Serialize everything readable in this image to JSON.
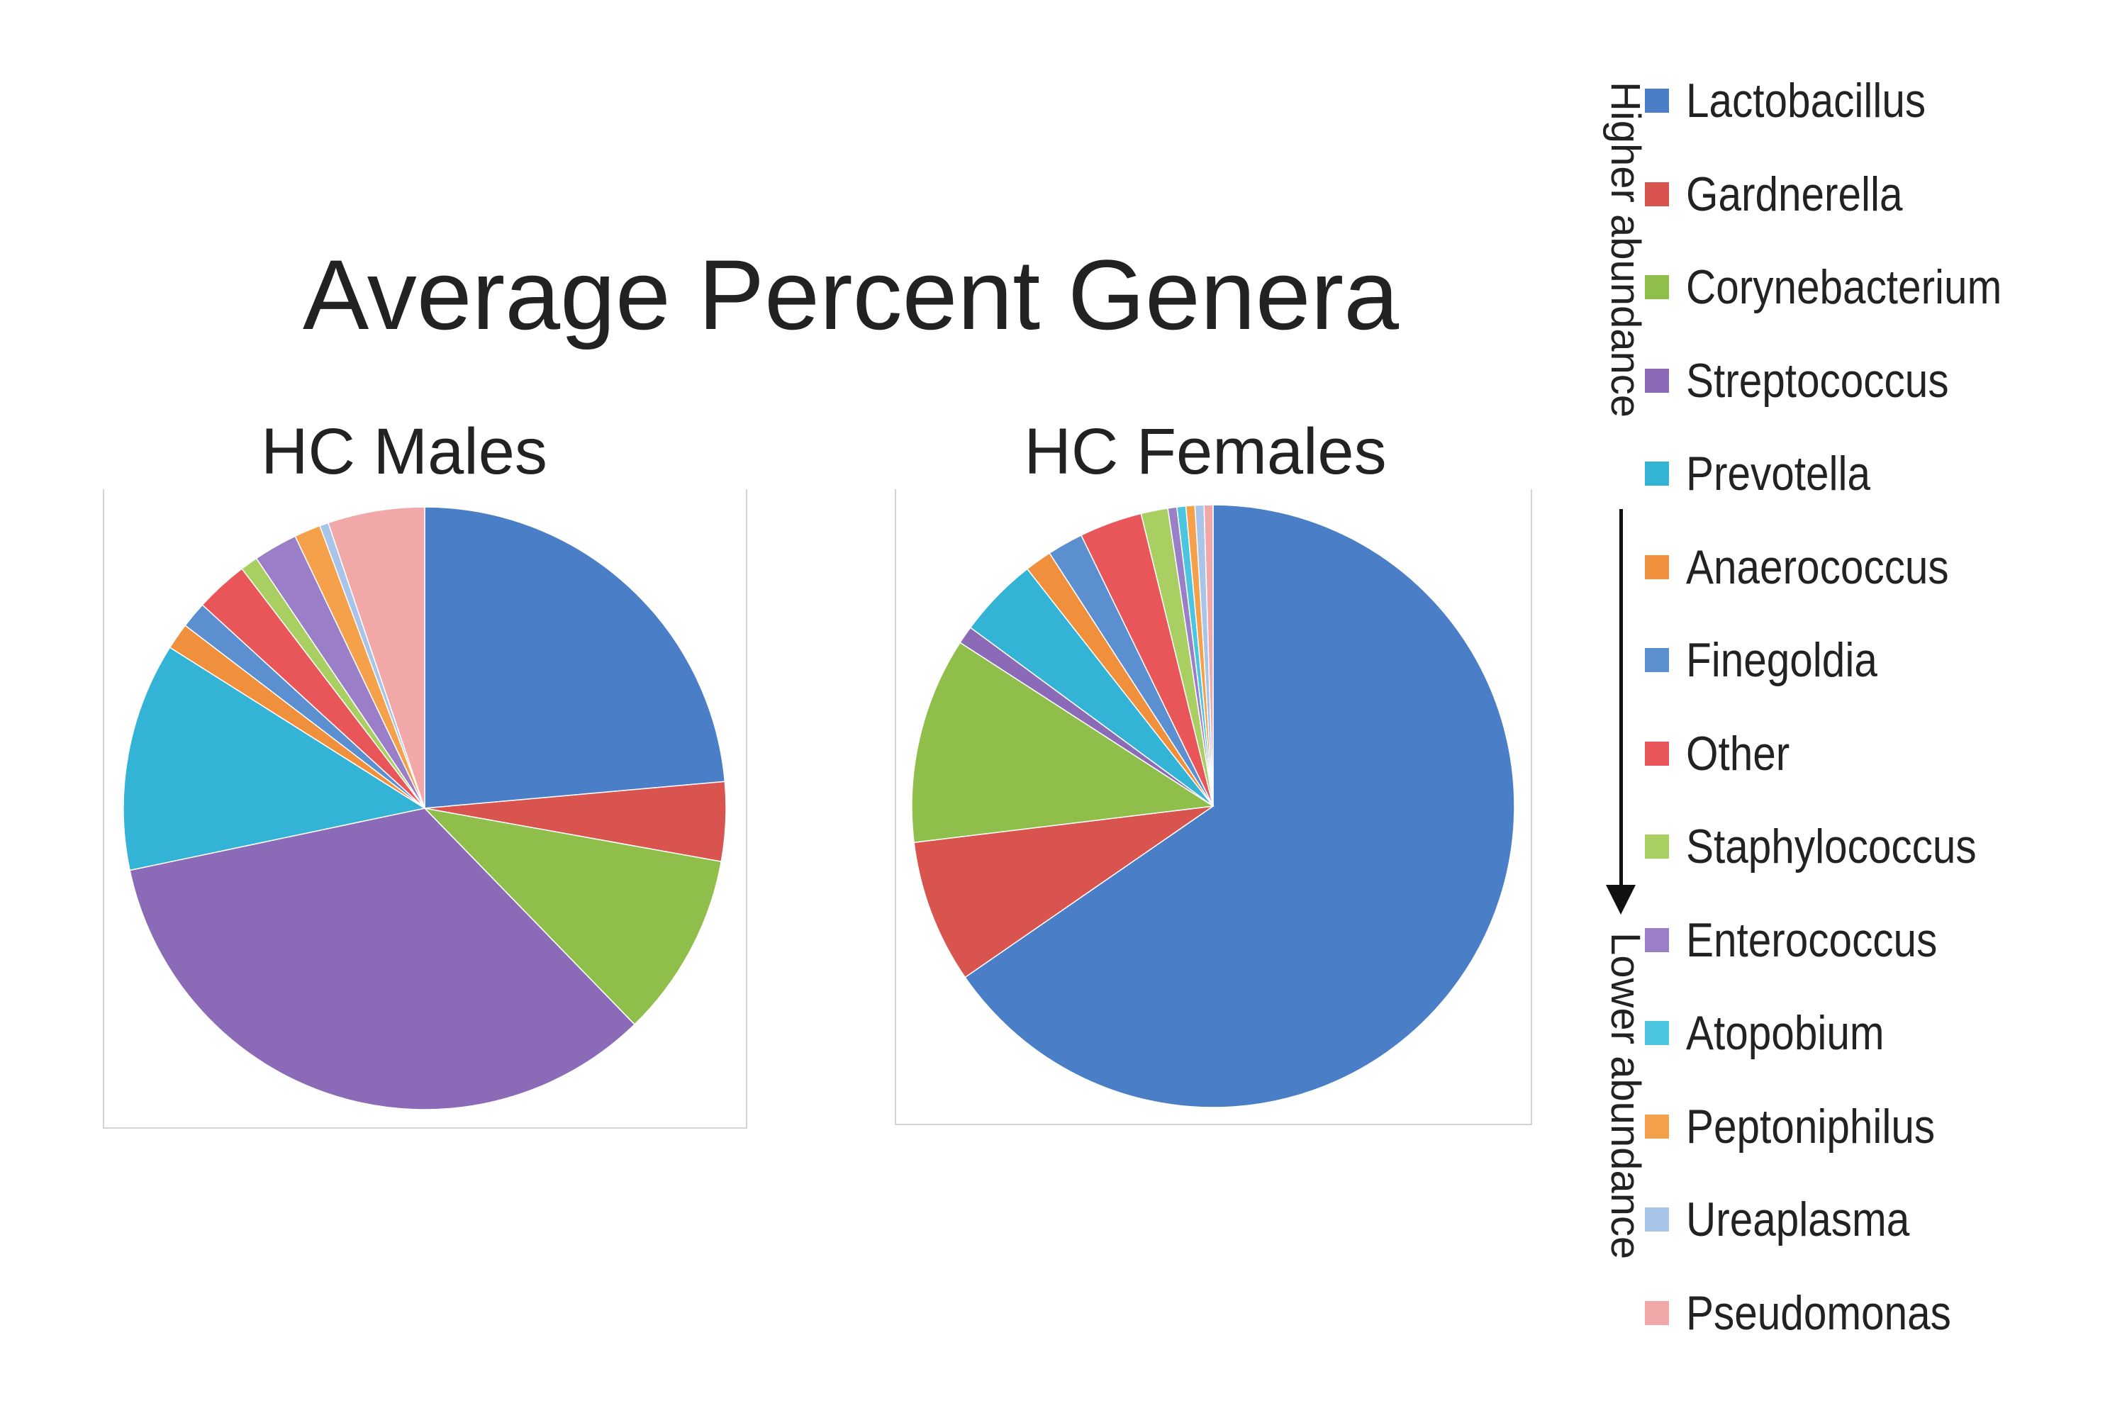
{
  "chart_data": {
    "title": "Average Percent Genera",
    "type": "pie",
    "categories": [
      "Lactobacillus",
      "Gardnerella",
      "Corynebacterium",
      "Streptococcus",
      "Prevotella",
      "Anaerococcus",
      "Finegoldia",
      "Other",
      "Staphylococcus",
      "Enterococcus",
      "Atopobium",
      "Peptoniphilus",
      "Ureaplasma",
      "Pseudomonas"
    ],
    "colors": [
      "#4a7ec6",
      "#d9534f",
      "#8fbf4a",
      "#8b6bb8",
      "#33b3d6",
      "#f08f3c",
      "#5b8fd0",
      "#e8565a",
      "#a9cf62",
      "#9a7ec8",
      "#4cc6e0",
      "#f5a04a",
      "#a8c4e8",
      "#f2a8a8"
    ],
    "charts": [
      {
        "title": "HC Males",
        "values": [
          25.0,
          4.5,
          10.5,
          36.0,
          13.0,
          1.5,
          1.5,
          3.0,
          1.0,
          2.5,
          0.0,
          1.5,
          0.5,
          5.5
        ]
      },
      {
        "title": "HC Females",
        "values": [
          68.0,
          8.0,
          11.5,
          1.0,
          4.5,
          1.5,
          2.0,
          3.5,
          1.5,
          0.5,
          0.5,
          0.5,
          0.5,
          0.5
        ]
      }
    ]
  },
  "legend": {
    "higher_label": "Higher abundance",
    "lower_label": "Lower abundance"
  }
}
